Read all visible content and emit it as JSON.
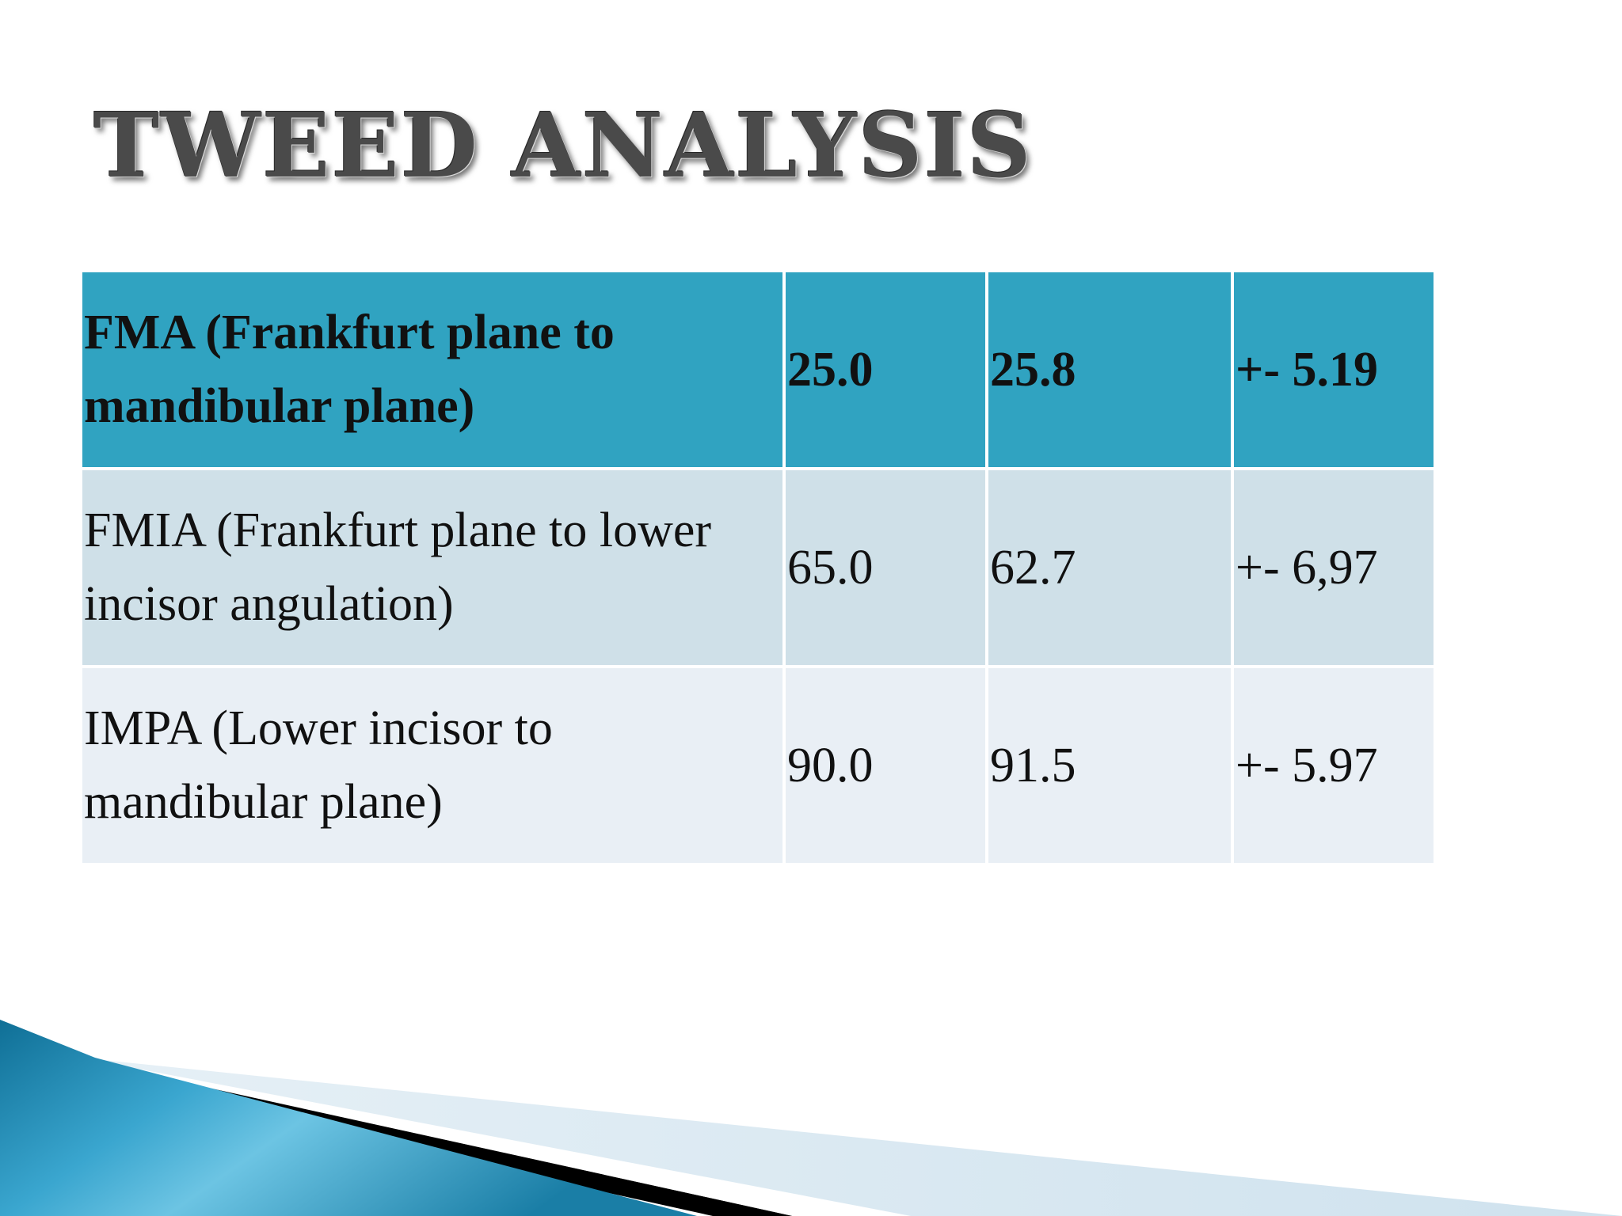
{
  "slide": {
    "title": "TWEED ANALYSIS"
  },
  "table": {
    "rows": [
      {
        "label": "FMA (Frankfurt plane to mandibular plane)",
        "value1": "25.0",
        "value2": "25.8",
        "deviation": "+- 5.19"
      },
      {
        "label": "FMIA (Frankfurt plane to lower incisor angulation)",
        "value1": "65.0",
        "value2": "62.7",
        "deviation": "+- 6,97"
      },
      {
        "label": "IMPA (Lower incisor to mandibular plane)",
        "value1": "90.0",
        "value2": "91.5",
        "deviation": "+- 5.97"
      }
    ]
  },
  "colors": {
    "header_row": "#30a3c1",
    "band_row_1": "#cfe0e8",
    "band_row_2": "#e9eff5",
    "accent_blue": "#1c8fb6"
  }
}
